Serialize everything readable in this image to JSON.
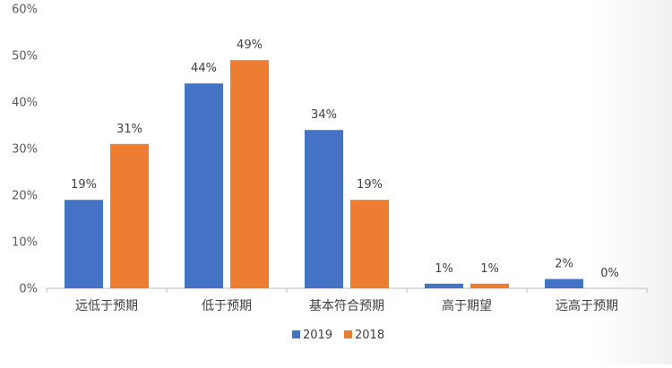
{
  "chart_data": {
    "type": "bar",
    "categories": [
      "远低于预期",
      "低于预期",
      "基本符合预期",
      "高于期望",
      "远高于预期"
    ],
    "series": [
      {
        "name": "2019",
        "values": [
          19,
          44,
          34,
          1,
          2
        ],
        "labels": [
          "19%",
          "44%",
          "34%",
          "1%",
          "2%"
        ],
        "color": "#4472c4"
      },
      {
        "name": "2018",
        "values": [
          31,
          49,
          19,
          1,
          0
        ],
        "labels": [
          "31%",
          "49%",
          "19%",
          "1%",
          "0%"
        ],
        "color": "#ed7d31"
      }
    ],
    "y_ticks": [
      0,
      10,
      20,
      30,
      40,
      50,
      60
    ],
    "y_tick_labels": [
      "0%",
      "10%",
      "20%",
      "30%",
      "40%",
      "50%",
      "60%"
    ],
    "ylim": [
      0,
      60
    ],
    "grid": false,
    "legend_position": "bottom",
    "title": "",
    "xlabel": "",
    "ylabel": ""
  }
}
